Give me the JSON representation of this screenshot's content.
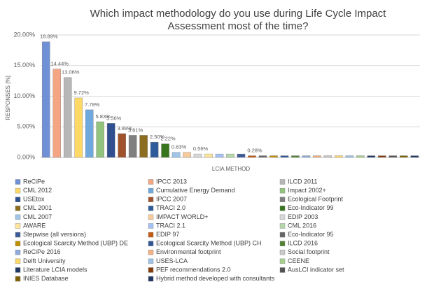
{
  "chart_data": {
    "type": "bar",
    "title": [
      "Which impact methodology do you use during Life Cycle Impact",
      "Assessment most of the time?"
    ],
    "y_label": "RESPONSES [%]",
    "x_label": "LCIA METHOD",
    "categories": [
      "ReCiPe",
      "IPCC 2013",
      "ILCD 2011",
      "CML 2012",
      "Cumulative Energy Demand",
      "Impact 2002+",
      "USEtox",
      "IPCC 2007",
      "Ecological Footprint",
      "CML 2001",
      "TRACI 2.0",
      "Eco-Indicator 99",
      "CML 2007",
      "IMPACT WORLD+",
      "EDIP 2003",
      "AWARE",
      "TRACI 2.1",
      "CML 2016",
      "Stepwise (all versions)",
      "EDIP 97",
      "Eco-Indicator 95",
      "Ecological Scarcity Method (UBP) DE",
      "Ecological Scarcity Method (UBP) CH",
      "ILCD 2016",
      "ReCiPe 2016",
      "Environmental footprint",
      "Social footprint",
      "Delft University",
      "USES-LCA",
      "CEENE",
      "Literature LCIA models",
      "PEF recommendations 2.0",
      "AusLCI indicator set",
      "INIES Database",
      "Hybrid method developed with consultants"
    ],
    "values": [
      18.89,
      14.44,
      13.06,
      9.72,
      7.78,
      5.83,
      5.56,
      3.89,
      3.61,
      3.61,
      2.5,
      2.22,
      0.83,
      0.83,
      0.56,
      0.56,
      0.56,
      0.56,
      0.56,
      0.28,
      0.28,
      0.28,
      0.28,
      0.28,
      0.28,
      0.28,
      0.28,
      0.28,
      0.28,
      0.28,
      0.28,
      0.28,
      0.28,
      0.28,
      0.28
    ],
    "value_labels": [
      "18.89%",
      "14.44%",
      "13.06%",
      "9.72%",
      "7.78%",
      "5.83%",
      "5.56%",
      "3.89%",
      "3.61%",
      null,
      "2.50%",
      "2.22%",
      "0.83%",
      null,
      "0.56%",
      null,
      null,
      null,
      null,
      "0.28%",
      null,
      null,
      null,
      null,
      null,
      null,
      null,
      null,
      null,
      null,
      null,
      null,
      null,
      null,
      null
    ],
    "colors": [
      "#7090d6",
      "#f4a582",
      "#b7b7b7",
      "#ffd966",
      "#6fa8dc",
      "#93c47d",
      "#2f4f8f",
      "#a0522d",
      "#7f7f7f",
      "#8c6d1f",
      "#2e5c9a",
      "#38761d",
      "#9fc5e8",
      "#f9cb9c",
      "#d9d9d9",
      "#ffe599",
      "#a4c2f4",
      "#b6d7a8",
      "#3d5a99",
      "#c55a11",
      "#666666",
      "#bf9000",
      "#2f5597",
      "#548235",
      "#8faadc",
      "#f4b183",
      "#c9c9c9",
      "#ffd966",
      "#9dc3e6",
      "#a9d18e",
      "#203864",
      "#843c0c",
      "#525252",
      "#7f6000",
      "#1f3864"
    ],
    "ylim": [
      0,
      20
    ],
    "yticks": [
      {
        "value": 0,
        "label": "0.00%"
      },
      {
        "value": 5,
        "label": "5.00%"
      },
      {
        "value": 10,
        "label": "10.00%"
      },
      {
        "value": 15,
        "label": "15.00%"
      },
      {
        "value": 20,
        "label": "20.00%"
      }
    ],
    "grid": true
  }
}
